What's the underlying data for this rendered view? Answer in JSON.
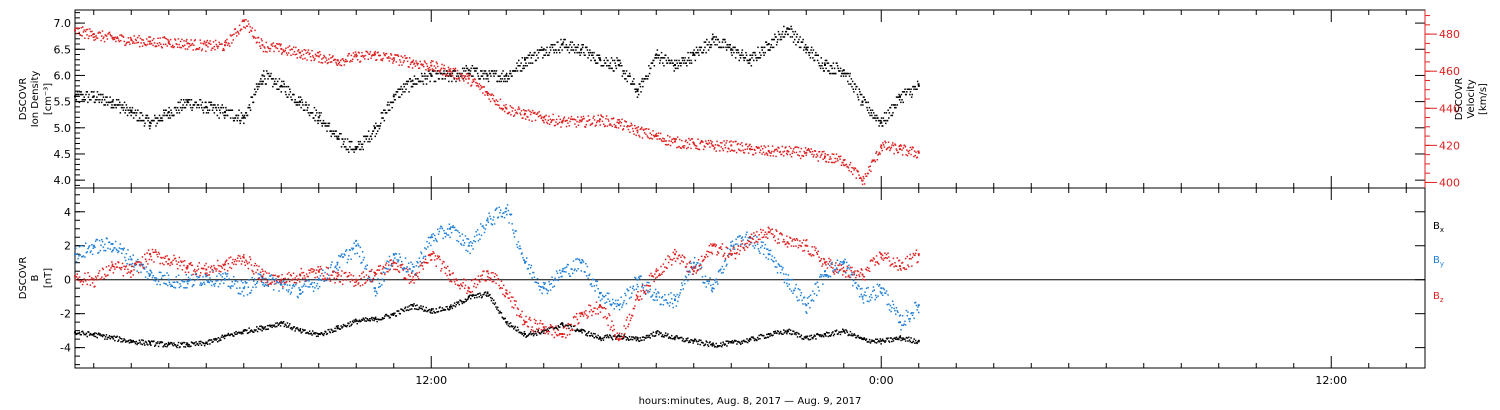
{
  "chart_data": [
    {
      "type": "scatter",
      "panel": "plasma",
      "ylabel_lines": [
        "DSCOVR",
        "Ion Density",
        "[cm⁻³]"
      ],
      "ylim": [
        3.85,
        7.25
      ],
      "yticks": [
        "4.0",
        "4.5",
        "5.0",
        "5.5",
        "6.0",
        "6.5",
        "7.0"
      ],
      "ytick_values": [
        4.0,
        4.5,
        5.0,
        5.5,
        6.0,
        6.5,
        7.0
      ],
      "y2label_lines": [
        "DSCOVR",
        "Velocity",
        "[km/s]"
      ],
      "y2lim": [
        397,
        493
      ],
      "y2ticks": [
        "400",
        "420",
        "440",
        "460",
        "480"
      ],
      "y2tick_values": [
        400,
        420,
        440,
        460,
        480
      ],
      "x_hours_range": [
        2.5,
        38.5
      ],
      "series": [
        {
          "name": "Ion Density",
          "axis": "left",
          "color": "#000000",
          "x_hours": [
            2.5,
            3.0,
            3.5,
            4.0,
            4.5,
            5.0,
            5.5,
            6.0,
            6.5,
            7.0,
            7.5,
            8.0,
            8.5,
            9.0,
            9.5,
            10.0,
            10.5,
            11.0,
            11.5,
            12.0,
            12.5,
            13.0,
            13.5,
            14.0,
            14.5,
            15.0,
            15.5,
            16.0,
            16.5,
            17.0,
            17.5,
            18.0,
            18.5,
            19.0,
            19.5,
            20.0,
            20.5,
            21.0,
            21.5,
            22.0,
            22.5,
            23.0,
            23.5,
            24.0,
            24.5,
            25.0
          ],
          "values": [
            5.6,
            5.6,
            5.5,
            5.3,
            5.1,
            5.3,
            5.5,
            5.4,
            5.3,
            5.2,
            6.0,
            5.8,
            5.5,
            5.2,
            4.8,
            4.6,
            5.0,
            5.6,
            5.9,
            6.0,
            6.0,
            6.1,
            6.0,
            6.0,
            6.3,
            6.5,
            6.6,
            6.5,
            6.3,
            6.2,
            5.7,
            6.4,
            6.2,
            6.4,
            6.7,
            6.5,
            6.3,
            6.6,
            6.9,
            6.5,
            6.2,
            6.1,
            5.5,
            5.1,
            5.6,
            5.8
          ]
        },
        {
          "name": "Velocity",
          "axis": "right",
          "color": "#e02020",
          "x_hours": [
            2.5,
            3.0,
            3.5,
            4.0,
            4.5,
            5.0,
            5.5,
            6.0,
            6.5,
            7.0,
            7.5,
            8.0,
            8.5,
            9.0,
            9.5,
            10.0,
            10.5,
            11.0,
            11.5,
            12.0,
            12.5,
            13.0,
            13.5,
            14.0,
            14.5,
            15.0,
            15.5,
            16.0,
            16.5,
            17.0,
            17.5,
            18.0,
            18.5,
            19.0,
            19.5,
            20.0,
            20.5,
            21.0,
            21.5,
            22.0,
            22.5,
            23.0,
            23.5,
            24.0,
            24.5,
            25.0
          ],
          "values": [
            482,
            480,
            478,
            477,
            476,
            476,
            475,
            474,
            474,
            487,
            474,
            472,
            470,
            468,
            466,
            468,
            469,
            467,
            465,
            463,
            460,
            456,
            448,
            440,
            437,
            435,
            433,
            433,
            434,
            432,
            428,
            425,
            422,
            421,
            420,
            420,
            418,
            417,
            417,
            416,
            414,
            412,
            401,
            420,
            418,
            416
          ]
        }
      ]
    },
    {
      "type": "scatter",
      "panel": "magnetic",
      "ylabel_lines": [
        "DSCOVR",
        "B",
        "[nT]"
      ],
      "ylim": [
        -5.2,
        5.4
      ],
      "yticks": [
        "-4",
        "-2",
        "0",
        "2",
        "4"
      ],
      "ytick_values": [
        -4,
        -2,
        0,
        2,
        4
      ],
      "zero_line": true,
      "x_hours_range": [
        2.5,
        38.5
      ],
      "series": [
        {
          "name": "Bx",
          "color": "#000000",
          "x_hours": [
            2.5,
            3.0,
            3.5,
            4.0,
            4.5,
            5.0,
            5.5,
            6.0,
            6.5,
            7.0,
            7.5,
            8.0,
            8.5,
            9.0,
            9.5,
            10.0,
            10.5,
            11.0,
            11.5,
            12.0,
            12.5,
            13.0,
            13.5,
            14.0,
            14.5,
            15.0,
            15.5,
            16.0,
            16.5,
            17.0,
            17.5,
            18.0,
            18.5,
            19.0,
            19.5,
            20.0,
            20.5,
            21.0,
            21.5,
            22.0,
            22.5,
            23.0,
            23.5,
            24.0,
            24.5,
            25.0
          ],
          "values": [
            -3.1,
            -3.2,
            -3.4,
            -3.6,
            -3.7,
            -3.8,
            -3.8,
            -3.7,
            -3.3,
            -3.0,
            -2.8,
            -2.5,
            -3.0,
            -3.2,
            -2.8,
            -2.4,
            -2.3,
            -2.0,
            -1.5,
            -1.8,
            -1.6,
            -1.0,
            -0.8,
            -2.5,
            -3.2,
            -3.0,
            -2.6,
            -3.0,
            -3.4,
            -3.3,
            -3.5,
            -3.1,
            -3.4,
            -3.6,
            -3.8,
            -3.7,
            -3.5,
            -3.2,
            -3.0,
            -3.4,
            -3.2,
            -3.0,
            -3.5,
            -3.6,
            -3.4,
            -3.6
          ]
        },
        {
          "name": "By",
          "color": "#1f7fd6",
          "x_hours": [
            2.5,
            3.0,
            3.5,
            4.0,
            4.5,
            5.0,
            5.5,
            6.0,
            6.5,
            7.0,
            7.5,
            8.0,
            8.5,
            9.0,
            9.5,
            10.0,
            10.5,
            11.0,
            11.5,
            12.0,
            12.5,
            13.0,
            13.5,
            14.0,
            14.5,
            15.0,
            15.5,
            16.0,
            16.5,
            17.0,
            17.5,
            18.0,
            18.5,
            19.0,
            19.5,
            20.0,
            20.5,
            21.0,
            21.5,
            22.0,
            22.5,
            23.0,
            23.5,
            24.0,
            24.5,
            25.0
          ],
          "values": [
            1.5,
            2.0,
            2.1,
            1.2,
            0.3,
            0.0,
            -0.1,
            0.2,
            0.0,
            -0.5,
            0.1,
            -0.3,
            -0.6,
            0.0,
            1.0,
            2.0,
            -0.5,
            1.5,
            0.5,
            2.5,
            3.0,
            2.0,
            3.5,
            4.2,
            1.0,
            -0.5,
            0.5,
            1.0,
            -0.8,
            -1.5,
            0.0,
            -1.0,
            -1.2,
            1.0,
            -0.5,
            2.0,
            2.5,
            1.5,
            0.0,
            -1.5,
            0.5,
            1.0,
            -1.0,
            -0.5,
            -2.5,
            -1.5
          ]
        },
        {
          "name": "Bz",
          "color": "#e02020",
          "x_hours": [
            2.5,
            3.0,
            3.5,
            4.0,
            4.5,
            5.0,
            5.5,
            6.0,
            6.5,
            7.0,
            7.5,
            8.0,
            8.5,
            9.0,
            9.5,
            10.0,
            10.5,
            11.0,
            11.5,
            12.0,
            12.5,
            13.0,
            13.5,
            14.0,
            14.5,
            15.0,
            15.5,
            16.0,
            16.5,
            17.0,
            17.5,
            18.0,
            18.5,
            19.0,
            19.5,
            20.0,
            20.5,
            21.0,
            21.5,
            22.0,
            22.5,
            23.0,
            23.5,
            24.0,
            24.5,
            25.0
          ],
          "values": [
            0.2,
            0.0,
            0.8,
            0.5,
            1.5,
            1.2,
            0.8,
            0.6,
            0.9,
            1.3,
            0.2,
            0.0,
            0.3,
            0.5,
            0.2,
            0.0,
            0.4,
            1.0,
            0.0,
            1.5,
            0.3,
            -0.5,
            0.5,
            -0.8,
            -2.5,
            -2.8,
            -3.2,
            -2.0,
            -1.5,
            -3.5,
            -1.0,
            0.5,
            1.5,
            0.5,
            2.0,
            1.5,
            2.5,
            2.8,
            2.2,
            2.0,
            1.0,
            0.5,
            0.3,
            1.5,
            0.8,
            1.5
          ]
        }
      ]
    }
  ],
  "legend": {
    "bx": {
      "base": "B",
      "sub": "x"
    },
    "by": {
      "base": "B",
      "sub": "y"
    },
    "bz": {
      "base": "B",
      "sub": "z"
    }
  },
  "xaxis": {
    "tick_labels": [
      "12:00",
      "0:00",
      "12:00"
    ],
    "tick_hours": [
      12,
      24,
      36
    ],
    "label": "hours:minutes, Aug.  8, 2017 — Aug.  9, 2017"
  },
  "colors": {
    "black": "#000000",
    "red": "#e02020",
    "blue": "#1f7fd6"
  }
}
